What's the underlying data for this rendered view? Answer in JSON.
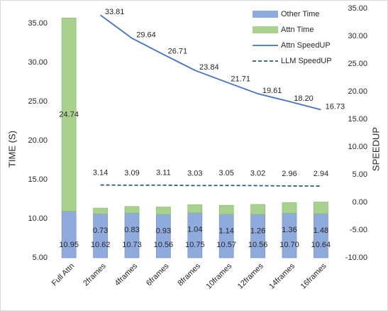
{
  "chart_data": {
    "type": "bar-line",
    "categories": [
      "Full Attn",
      "2frames",
      "4frames",
      "6frames",
      "8frames",
      "10frames",
      "12frames",
      "14frames",
      "16frames"
    ],
    "series": [
      {
        "name": "Other Time",
        "color": "#8faadc",
        "stack": true,
        "values": [
          10.95,
          10.62,
          10.73,
          10.56,
          10.75,
          10.57,
          10.56,
          10.7,
          10.64
        ],
        "value_labels": [
          "10.95",
          "10.62",
          "10.73",
          "10.56",
          "10.75",
          "10.57",
          "10.56",
          "10.70",
          "10.64"
        ]
      },
      {
        "name": "Attn Time",
        "color": "#a9d18e",
        "stack": true,
        "values": [
          24.74,
          0.73,
          0.83,
          0.93,
          1.04,
          1.14,
          1.26,
          1.36,
          1.48
        ],
        "value_labels": [
          "24.74",
          "0.73",
          "0.83",
          "0.93",
          "1.04",
          "1.14",
          "1.26",
          "1.36",
          "1.48"
        ]
      },
      {
        "name": "Attn SpeedUP",
        "color": "#4472c4",
        "axis": "y2",
        "dash": false,
        "values": [
          null,
          33.81,
          29.64,
          26.71,
          23.84,
          21.71,
          19.61,
          18.2,
          16.73
        ],
        "value_labels": [
          null,
          "33.81",
          "29.64",
          "26.71",
          "23.84",
          "21.71",
          "19.61",
          "18.20",
          "16.73"
        ]
      },
      {
        "name": "LLM SpeedUP",
        "color": "#2e5a88",
        "axis": "y2",
        "dash": true,
        "values": [
          null,
          3.14,
          3.09,
          3.11,
          3.03,
          3.05,
          3.02,
          2.96,
          2.94
        ],
        "value_labels": [
          null,
          "3.14",
          "3.09",
          "3.11",
          "3.03",
          "3.05",
          "3.02",
          "2.96",
          "2.94"
        ]
      }
    ],
    "ylabel": "TIME (S)",
    "y2label": "SPEEDUP",
    "ylim": [
      5,
      36.9
    ],
    "yticks": [
      {
        "value": 5,
        "label": "5.00"
      },
      {
        "value": 10,
        "label": "10.00"
      },
      {
        "value": 15,
        "label": "15.00"
      },
      {
        "value": 20,
        "label": "20.00"
      },
      {
        "value": 25,
        "label": "25.00"
      },
      {
        "value": 30,
        "label": "30.00"
      },
      {
        "value": 35,
        "label": "35.00"
      }
    ],
    "y2lim": [
      -10,
      35
    ],
    "y2ticks": [
      {
        "value": -10,
        "label": "-10.00"
      },
      {
        "value": -5,
        "label": "-5.00"
      },
      {
        "value": 0,
        "label": "0.00"
      },
      {
        "value": 5,
        "label": "5.00"
      },
      {
        "value": 10,
        "label": "10.00"
      },
      {
        "value": 15,
        "label": "15.00"
      },
      {
        "value": 20,
        "label": "20.00"
      },
      {
        "value": 25,
        "label": "25.00"
      },
      {
        "value": 30,
        "label": "30.00"
      },
      {
        "value": 35,
        "label": "35.00"
      }
    ],
    "legend": "top-right"
  }
}
